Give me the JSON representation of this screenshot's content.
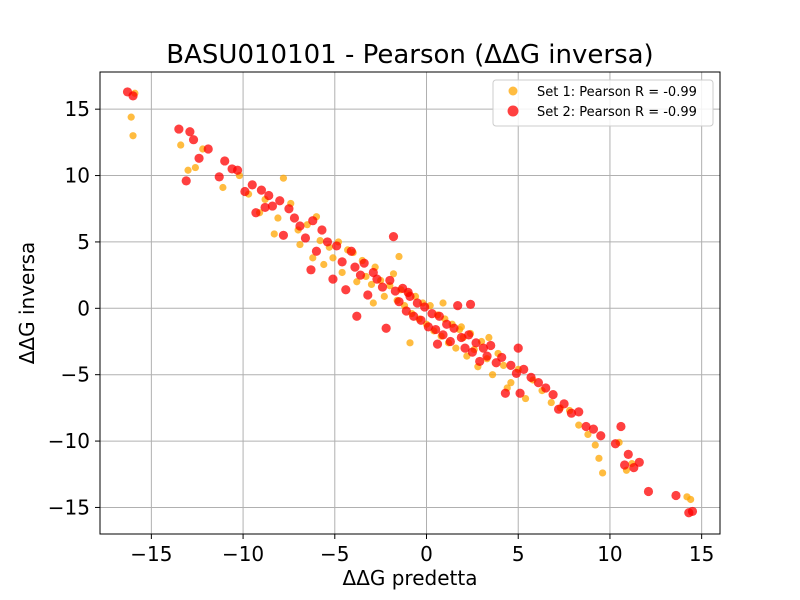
{
  "chart_data": {
    "type": "scatter",
    "title": "BASU010101 - Pearson (ΔΔG inversa)",
    "xlabel": "ΔΔG predetta",
    "ylabel": "ΔΔG inversa",
    "xlim": [
      -17.8,
      16.0
    ],
    "ylim": [
      -17.0,
      17.8
    ],
    "xticks": [
      -15,
      -10,
      -5,
      0,
      5,
      10,
      15
    ],
    "yticks": [
      -15,
      -10,
      -5,
      0,
      5,
      10,
      15
    ],
    "xtick_labels": [
      "−15",
      "−10",
      "−5",
      "0",
      "5",
      "10",
      "15"
    ],
    "ytick_labels": [
      "−15",
      "−10",
      "−5",
      "0",
      "5",
      "10",
      "15"
    ],
    "grid": true,
    "legend_position": "top-right",
    "series": [
      {
        "name": "Set 1: Pearson R = -0.99",
        "color": "#FFA500",
        "points": [
          [
            -16.1,
            14.4
          ],
          [
            -16.0,
            13.0
          ],
          [
            -15.9,
            16.2
          ],
          [
            -13.4,
            12.3
          ],
          [
            -13.0,
            10.4
          ],
          [
            -12.6,
            10.6
          ],
          [
            -12.2,
            12.0
          ],
          [
            -11.1,
            9.1
          ],
          [
            -10.2,
            10.0
          ],
          [
            -9.7,
            8.6
          ],
          [
            -9.1,
            7.2
          ],
          [
            -8.8,
            8.2
          ],
          [
            -8.3,
            5.6
          ],
          [
            -8.1,
            6.8
          ],
          [
            -7.8,
            9.8
          ],
          [
            -7.4,
            7.9
          ],
          [
            -7.0,
            5.9
          ],
          [
            -6.9,
            4.8
          ],
          [
            -6.5,
            6.3
          ],
          [
            -6.2,
            3.8
          ],
          [
            -5.8,
            5.1
          ],
          [
            -5.6,
            3.3
          ],
          [
            -5.3,
            4.6
          ],
          [
            -5.1,
            3.8
          ],
          [
            -4.8,
            5.0
          ],
          [
            -4.6,
            2.7
          ],
          [
            -4.3,
            4.4
          ],
          [
            -4.0,
            4.2
          ],
          [
            -3.8,
            2.0
          ],
          [
            -3.5,
            3.6
          ],
          [
            -3.3,
            2.4
          ],
          [
            -3.0,
            1.8
          ],
          [
            -2.8,
            3.1
          ],
          [
            -2.5,
            2.1
          ],
          [
            -2.3,
            0.9
          ],
          [
            -2.0,
            1.7
          ],
          [
            -1.8,
            2.6
          ],
          [
            -1.6,
            0.6
          ],
          [
            -1.4,
            1.4
          ],
          [
            -1.2,
            0.2
          ],
          [
            -1.0,
            1.1
          ],
          [
            -0.8,
            -0.4
          ],
          [
            -0.6,
            0.9
          ],
          [
            -0.4,
            -0.8
          ],
          [
            -0.2,
            0.4
          ],
          [
            0.0,
            -1.2
          ],
          [
            0.2,
            0.2
          ],
          [
            0.4,
            -1.7
          ],
          [
            0.6,
            -0.5
          ],
          [
            0.8,
            -2.1
          ],
          [
            1.0,
            -0.8
          ],
          [
            1.2,
            -2.6
          ],
          [
            1.4,
            -1.2
          ],
          [
            1.6,
            -3.0
          ],
          [
            1.8,
            -1.6
          ],
          [
            2.0,
            -2.2
          ],
          [
            2.2,
            -3.6
          ],
          [
            2.4,
            -1.9
          ],
          [
            2.6,
            -3.1
          ],
          [
            2.8,
            -4.4
          ],
          [
            3.0,
            -2.5
          ],
          [
            3.3,
            -3.8
          ],
          [
            3.6,
            -5.0
          ],
          [
            3.9,
            -3.4
          ],
          [
            4.2,
            -4.3
          ],
          [
            4.6,
            -5.6
          ],
          [
            5.0,
            -4.6
          ],
          [
            5.4,
            -6.8
          ],
          [
            5.8,
            -5.4
          ],
          [
            6.3,
            -6.2
          ],
          [
            6.8,
            -7.1
          ],
          [
            7.3,
            -7.5
          ],
          [
            7.8,
            -7.7
          ],
          [
            8.3,
            -8.8
          ],
          [
            8.8,
            -9.5
          ],
          [
            9.2,
            -10.3
          ],
          [
            9.4,
            -11.3
          ],
          [
            9.6,
            -12.4
          ],
          [
            10.5,
            -10.1
          ],
          [
            10.9,
            -12.2
          ],
          [
            11.2,
            -11.7
          ],
          [
            14.2,
            -14.2
          ],
          [
            14.4,
            -14.4
          ],
          [
            -2.9,
            0.4
          ],
          [
            -0.9,
            -2.6
          ],
          [
            1.9,
            -1.4
          ],
          [
            -1.5,
            3.9
          ],
          [
            0.9,
            0.4
          ],
          [
            3.4,
            -2.2
          ],
          [
            -6.0,
            6.9
          ],
          [
            4.4,
            -6.0
          ]
        ]
      },
      {
        "name": "Set 2: Pearson R = -0.99",
        "color": "#FF0000",
        "points": [
          [
            -16.3,
            16.3
          ],
          [
            -16.0,
            16.0
          ],
          [
            -13.5,
            13.5
          ],
          [
            -13.1,
            9.6
          ],
          [
            -12.9,
            13.3
          ],
          [
            -12.7,
            12.7
          ],
          [
            -12.4,
            11.3
          ],
          [
            -11.9,
            12.0
          ],
          [
            -11.3,
            9.9
          ],
          [
            -11.0,
            11.1
          ],
          [
            -10.6,
            10.5
          ],
          [
            -10.3,
            10.4
          ],
          [
            -9.9,
            8.8
          ],
          [
            -9.5,
            9.3
          ],
          [
            -9.3,
            7.2
          ],
          [
            -9.0,
            8.9
          ],
          [
            -8.6,
            8.5
          ],
          [
            -8.4,
            7.7
          ],
          [
            -8.0,
            8.1
          ],
          [
            -7.8,
            5.5
          ],
          [
            -7.5,
            7.5
          ],
          [
            -7.2,
            6.8
          ],
          [
            -6.9,
            6.2
          ],
          [
            -6.6,
            5.3
          ],
          [
            -6.2,
            6.6
          ],
          [
            -6.0,
            4.3
          ],
          [
            -5.7,
            5.9
          ],
          [
            -5.4,
            5.0
          ],
          [
            -5.1,
            2.2
          ],
          [
            -4.9,
            4.7
          ],
          [
            -4.6,
            3.5
          ],
          [
            -4.4,
            1.4
          ],
          [
            -4.1,
            4.3
          ],
          [
            -3.9,
            3.1
          ],
          [
            -3.6,
            2.5
          ],
          [
            -3.4,
            3.4
          ],
          [
            -3.2,
            1.0
          ],
          [
            -2.9,
            2.7
          ],
          [
            -2.7,
            2.2
          ],
          [
            -2.4,
            1.6
          ],
          [
            -2.2,
            -1.5
          ],
          [
            -2.0,
            2.1
          ],
          [
            -1.8,
            5.4
          ],
          [
            -1.7,
            1.3
          ],
          [
            -1.5,
            0.5
          ],
          [
            -1.3,
            1.5
          ],
          [
            -1.1,
            -0.2
          ],
          [
            -0.9,
            0.9
          ],
          [
            -0.7,
            -0.6
          ],
          [
            -0.5,
            0.4
          ],
          [
            -0.3,
            -0.9
          ],
          [
            -0.1,
            0.1
          ],
          [
            0.1,
            -1.4
          ],
          [
            0.3,
            -0.4
          ],
          [
            0.5,
            -1.6
          ],
          [
            0.7,
            -0.6
          ],
          [
            0.9,
            -2.0
          ],
          [
            1.1,
            -1.2
          ],
          [
            1.3,
            -2.5
          ],
          [
            1.5,
            -1.5
          ],
          [
            1.7,
            0.2
          ],
          [
            1.9,
            -2.2
          ],
          [
            2.1,
            -3.0
          ],
          [
            2.3,
            -2.0
          ],
          [
            2.5,
            -3.3
          ],
          [
            2.7,
            -2.6
          ],
          [
            2.9,
            -4.0
          ],
          [
            3.1,
            -3.0
          ],
          [
            3.3,
            -3.6
          ],
          [
            3.5,
            -2.8
          ],
          [
            3.8,
            -4.1
          ],
          [
            4.1,
            -3.7
          ],
          [
            4.3,
            -6.4
          ],
          [
            4.6,
            -4.3
          ],
          [
            4.9,
            -4.9
          ],
          [
            5.0,
            -3.0
          ],
          [
            5.3,
            -4.6
          ],
          [
            5.7,
            -5.2
          ],
          [
            6.1,
            -5.6
          ],
          [
            6.5,
            -6.0
          ],
          [
            6.9,
            -6.5
          ],
          [
            7.2,
            -7.6
          ],
          [
            7.5,
            -7.2
          ],
          [
            7.9,
            -7.9
          ],
          [
            8.3,
            -7.8
          ],
          [
            8.7,
            -8.9
          ],
          [
            9.1,
            -9.1
          ],
          [
            9.5,
            -9.6
          ],
          [
            10.3,
            -10.2
          ],
          [
            10.6,
            -8.9
          ],
          [
            10.8,
            -11.8
          ],
          [
            11.0,
            -11.0
          ],
          [
            11.3,
            -12.0
          ],
          [
            11.6,
            -11.6
          ],
          [
            12.1,
            -13.8
          ],
          [
            13.6,
            -14.1
          ],
          [
            14.3,
            -15.4
          ],
          [
            14.5,
            -15.3
          ],
          [
            -3.8,
            -0.6
          ],
          [
            -1.0,
            1.2
          ],
          [
            0.6,
            -2.7
          ],
          [
            2.4,
            0.3
          ],
          [
            -6.3,
            2.9
          ],
          [
            5.1,
            -6.4
          ],
          [
            -8.8,
            7.6
          ]
        ]
      }
    ]
  }
}
